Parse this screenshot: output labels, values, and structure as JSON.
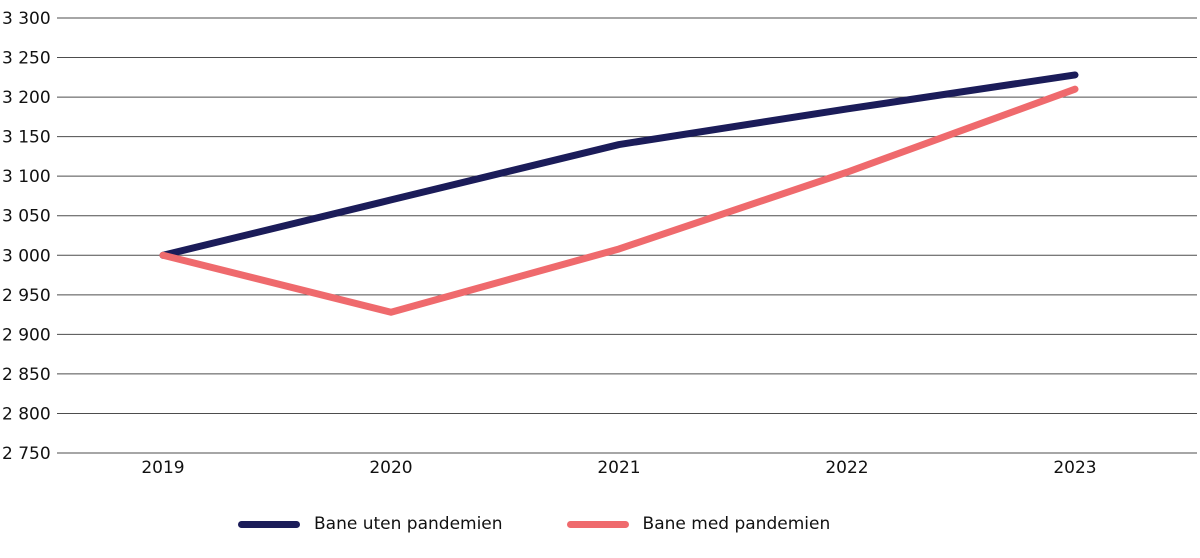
{
  "chart_data": {
    "type": "line",
    "x": [
      "2019",
      "2020",
      "2021",
      "2022",
      "2023"
    ],
    "series": [
      {
        "name": "Bane uten pandemien",
        "color": "#1b1c59",
        "values": [
          3000,
          3070,
          3140,
          3185,
          3228
        ]
      },
      {
        "name": "Bane med pandemien",
        "color": "#ef6a6d",
        "values": [
          3000,
          2928,
          3008,
          3105,
          3210
        ]
      }
    ],
    "title": "",
    "xlabel": "",
    "ylabel": "",
    "ylim": [
      2750,
      3300
    ],
    "ytick_step": 50,
    "grid": true,
    "legend_position": "bottom"
  },
  "axis": {
    "y_ticks": [
      "3 300",
      "3 250",
      "3 200",
      "3 150",
      "3 100",
      "3 050",
      "3 000",
      "2 950",
      "2 900",
      "2 850",
      "2 800",
      "2 750"
    ],
    "x_ticks": [
      "2019",
      "2020",
      "2021",
      "2022",
      "2023"
    ]
  },
  "legend": {
    "items": [
      {
        "label": "Bane uten pandemien",
        "color": "#1b1c59"
      },
      {
        "label": "Bane med pandemien",
        "color": "#ef6a6d"
      }
    ]
  },
  "style": {
    "gridline_color": "#4d4d4d",
    "text_color": "#111111",
    "line_width": 7
  }
}
